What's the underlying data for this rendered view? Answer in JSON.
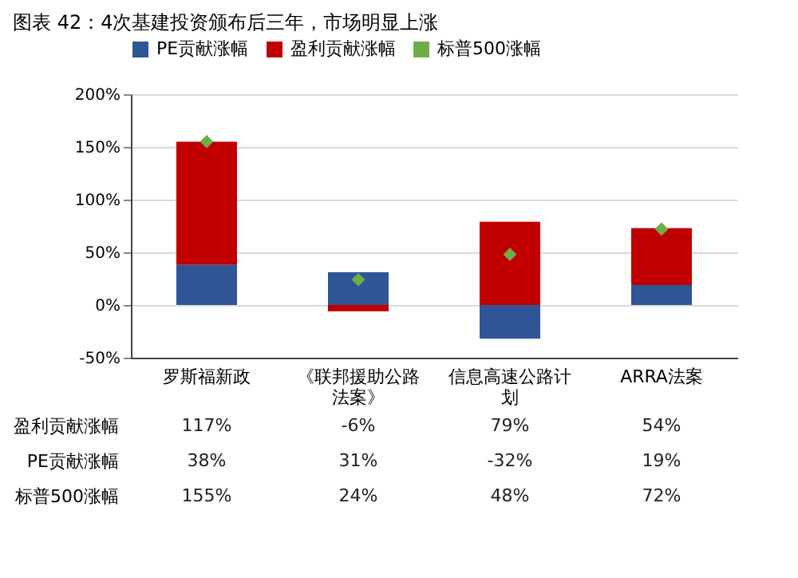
{
  "chart_data": {
    "type": "bar",
    "title": "图表 42：4次基建投资颁布后三年，市场明显上涨",
    "categories": [
      "罗斯福新政",
      "《联邦援助公路法案》",
      "信息高速公路计划",
      "ARRA法案"
    ],
    "series": [
      {
        "name": "PE贡献涨幅",
        "color": "#2f5597",
        "values": [
          38,
          31,
          -32,
          19
        ],
        "value_labels": [
          "38%",
          "31%",
          "-32%",
          "19%"
        ]
      },
      {
        "name": "盈利贡献涨幅",
        "color": "#c00000",
        "values": [
          117,
          -6,
          79,
          54
        ],
        "value_labels": [
          "117%",
          "-6%",
          "79%",
          "54%"
        ]
      },
      {
        "name": "标普500涨幅",
        "color": "#70ad47",
        "type": "scatter",
        "values": [
          155,
          24,
          48,
          72
        ],
        "value_labels": [
          "155%",
          "24%",
          "48%",
          "72%"
        ]
      }
    ],
    "stacked": true,
    "marker": "diamond",
    "ylim": [
      -50,
      200
    ],
    "yticks": [
      {
        "value": -50,
        "label": "-50%"
      },
      {
        "value": 0,
        "label": "0%"
      },
      {
        "value": 50,
        "label": "50%"
      },
      {
        "value": 100,
        "label": "100%"
      },
      {
        "value": 150,
        "label": "150%"
      },
      {
        "value": 200,
        "label": "200%"
      }
    ],
    "grid": "y",
    "legend": "top"
  }
}
